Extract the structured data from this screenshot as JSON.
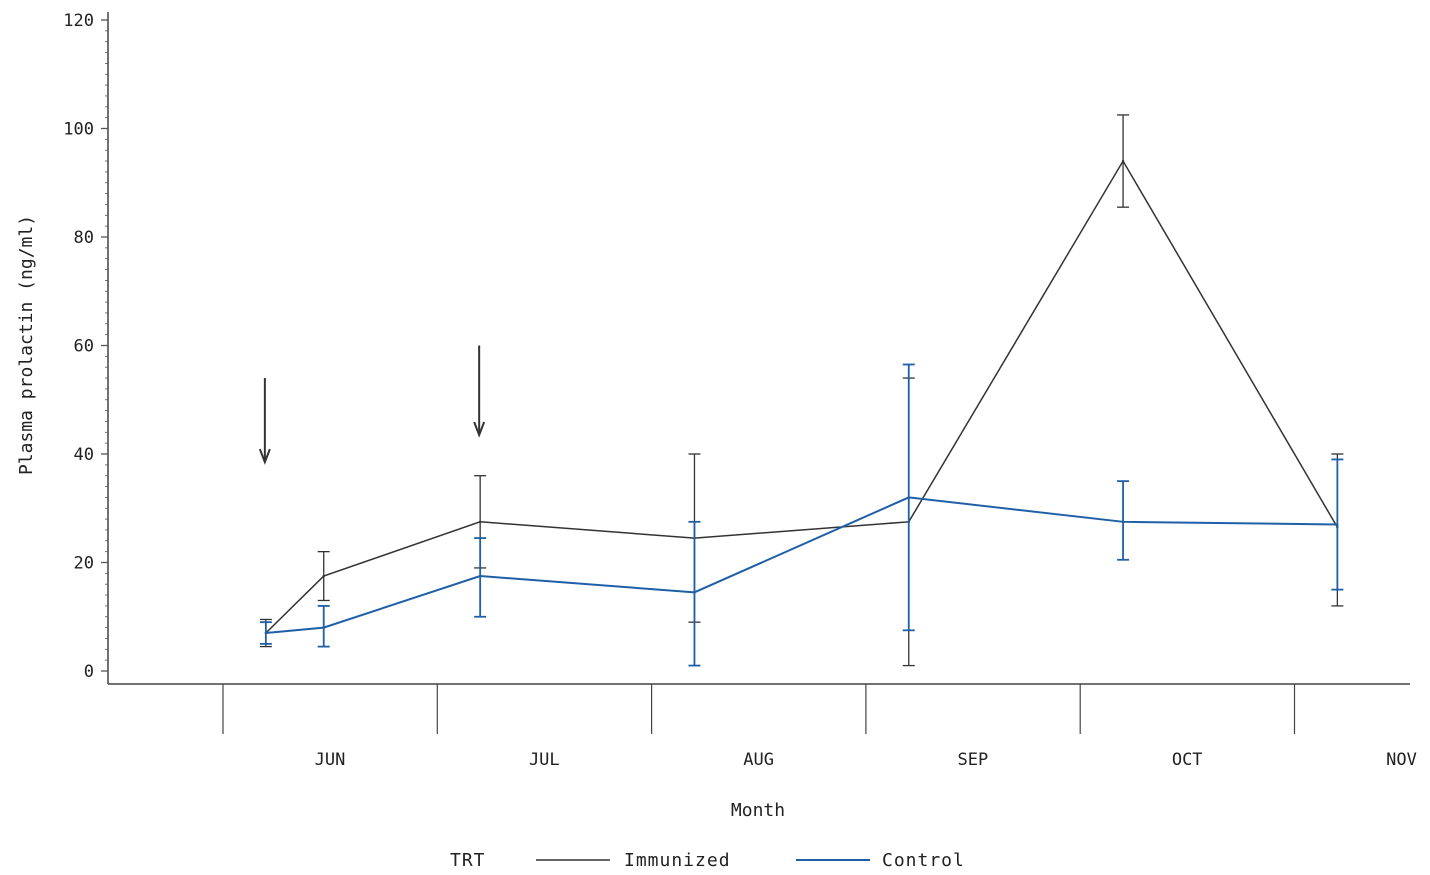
{
  "chart_data": {
    "type": "line",
    "title": "",
    "xlabel": "Month",
    "ylabel": "Plasma prolactin (ng/ml)",
    "ylim": [
      0,
      120
    ],
    "yticks": [
      0,
      20,
      40,
      60,
      80,
      100,
      120
    ],
    "ytick_labels": [
      "0",
      "20",
      "40",
      "60",
      "80",
      "100",
      "120"
    ],
    "xlim": [
      0,
      6
    ],
    "month_labels": [
      "JUN",
      "JUL",
      "AUG",
      "SEP",
      "OCT",
      "NOV"
    ],
    "legend": {
      "title": "TRT",
      "position": "bottom-center"
    },
    "series": [
      {
        "name": "Immunized",
        "color": "#333333",
        "x": [
          0.2,
          0.47,
          1.2,
          2.2,
          3.2,
          4.2,
          5.2
        ],
        "y": [
          7,
          17.5,
          27.5,
          24.5,
          27.5,
          94,
          26.5
        ],
        "err_low": [
          4.5,
          13,
          19,
          9,
          1,
          85.5,
          12
        ],
        "err_high": [
          9.5,
          22,
          36,
          40,
          54,
          102.5,
          40
        ]
      },
      {
        "name": "Control",
        "color": "#1f5fa8",
        "x": [
          0.2,
          0.47,
          1.2,
          2.2,
          3.2,
          4.2,
          5.2
        ],
        "y": [
          7,
          8,
          17.5,
          14.5,
          32,
          27.5,
          27
        ],
        "err_low": [
          5,
          4.5,
          10,
          1,
          7.5,
          20.5,
          15
        ],
        "err_high": [
          9,
          12,
          24.5,
          27.5,
          56.5,
          35,
          39
        ]
      }
    ],
    "annotations": [
      {
        "type": "arrow",
        "x": 0.2,
        "y_from": 54,
        "y_to": 38.5
      },
      {
        "type": "arrow",
        "x": 1.2,
        "y_from": 60,
        "y_to": 43.5
      }
    ]
  }
}
